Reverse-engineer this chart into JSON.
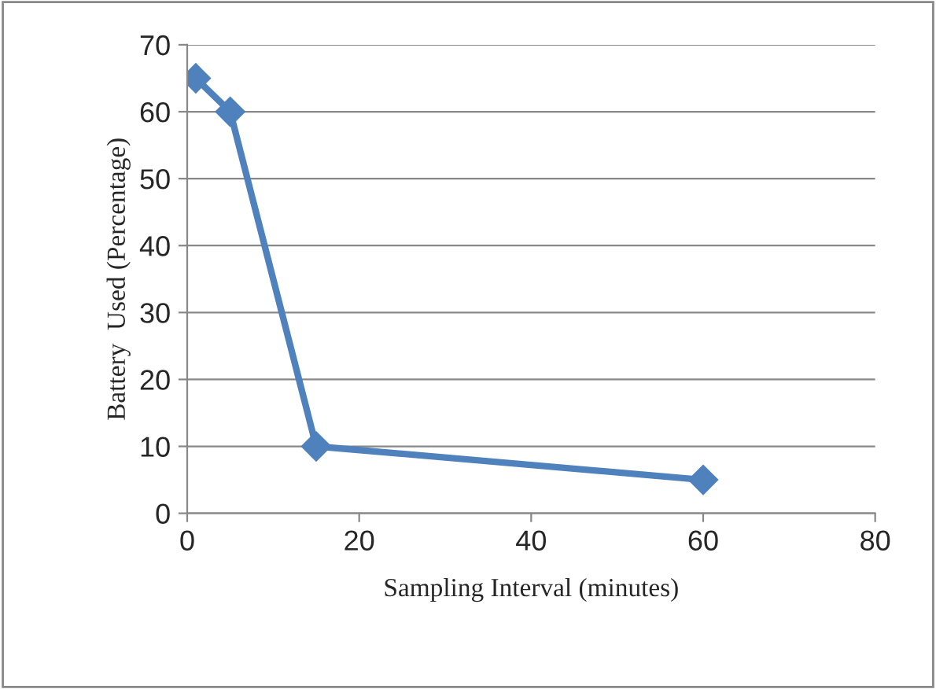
{
  "chart_data": {
    "type": "line",
    "xlabel": "Sampling Interval (minutes)",
    "ylabel": "Battery  Used (Percentage)",
    "x": [
      1,
      5,
      15,
      60
    ],
    "series": [
      {
        "color": "#4f81bd",
        "values": [
          65,
          60,
          10,
          5
        ]
      }
    ],
    "xlim": [
      0,
      80
    ],
    "xticks": [
      0,
      20,
      40,
      60,
      80
    ],
    "ylim": [
      0,
      70
    ],
    "yticks": [
      0,
      10,
      20,
      30,
      40,
      50,
      60,
      70
    ],
    "grid": "y",
    "marker": "diamond",
    "line_style": "solid",
    "legend": false
  }
}
